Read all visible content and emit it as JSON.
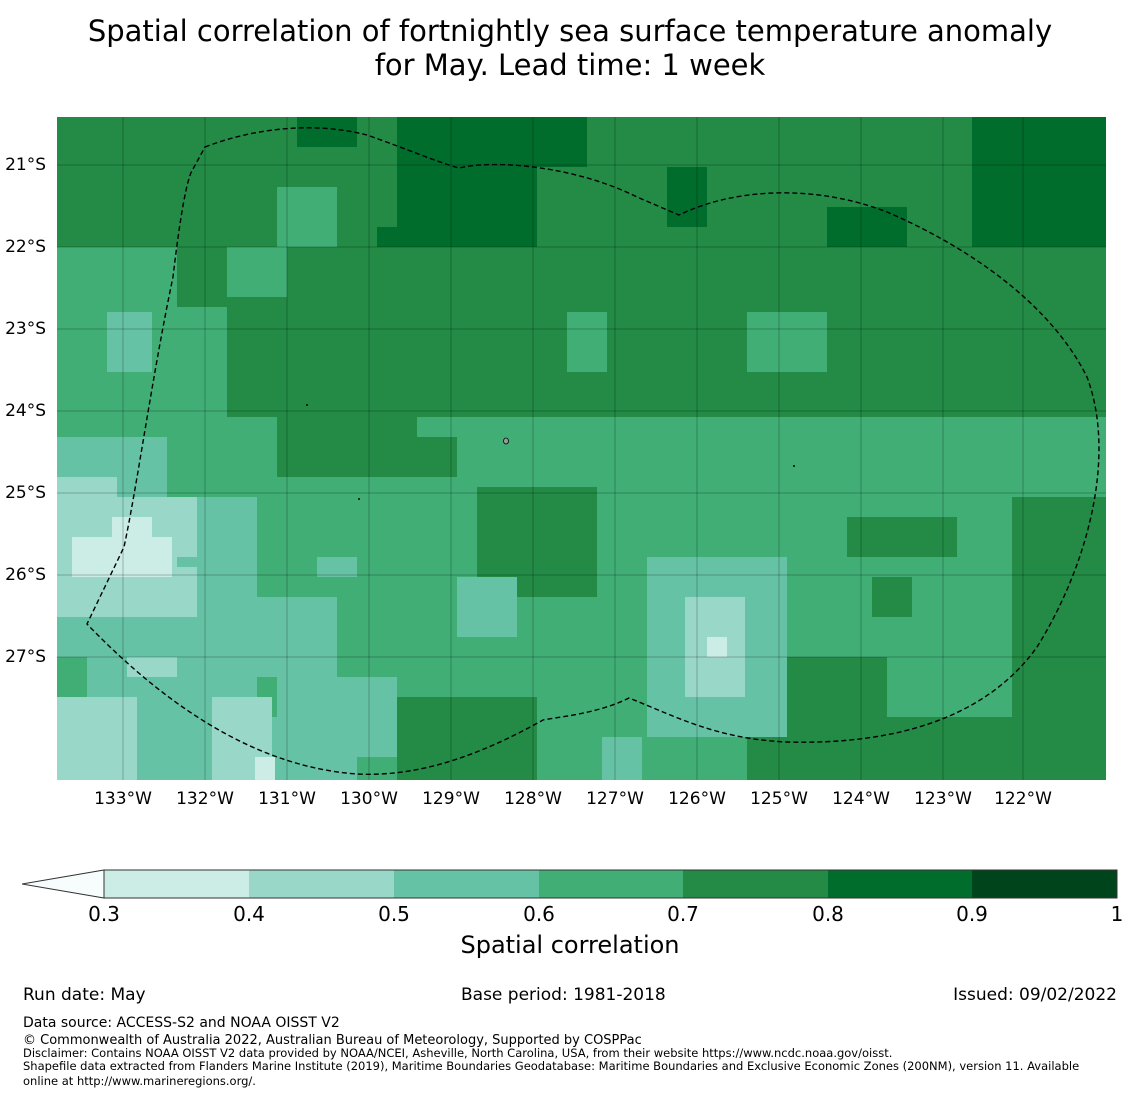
{
  "title": {
    "line1": "Spatial correlation of fortnightly sea surface temperature anomaly",
    "line2": "for May. Lead time: 1 week"
  },
  "map": {
    "lat_labels": [
      "21°S",
      "22°S",
      "23°S",
      "24°S",
      "25°S",
      "26°S",
      "27°S"
    ],
    "lon_labels": [
      "133°W",
      "132°W",
      "131°W",
      "130°W",
      "129°W",
      "128°W",
      "127°W",
      "126°W",
      "125°W",
      "124°W",
      "123°W",
      "122°W"
    ],
    "colors": {
      "0.3-0.4": "#ccece6",
      "0.4-0.5": "#99d8c9",
      "0.5-0.6": "#66c2a4",
      "0.6-0.7": "#41ae76",
      "0.7-0.8": "#238b45",
      "0.8-0.9": "#006d2c",
      "0.9-1.0": "#00441b",
      "below-0.3": "#f7fcfd"
    }
  },
  "colorbar": {
    "ticks": [
      "0.3",
      "0.4",
      "0.5",
      "0.6",
      "0.7",
      "0.8",
      "0.9",
      "1"
    ],
    "title": "Spatial correlation"
  },
  "footer": {
    "run_date": "Run date: May",
    "base_period": "Base period: 1981-2018",
    "issued": "Issued: 09/02/2022",
    "data_source": "Data source: ACCESS-S2 and NOAA OISST V2",
    "copyright": "© Commonwealth of Australia 2022, Australian Bureau of Meteorology, Supported by COSPPac",
    "disclaimer": "Disclaimer: Contains NOAA OISST V2 data provided by NOAA/NCEI, Asheville, North Carolina, USA, from their website https://www.ncdc.noaa.gov/oisst.",
    "shapefile_1": "Shapefile data extracted from Flanders Marine Institute (2019), Maritime Boundaries Geodatabase: Maritime Boundaries and Exclusive Economic Zones (200NM), version 11. Available",
    "shapefile_2": "online at http://www.marineregions.org/."
  }
}
